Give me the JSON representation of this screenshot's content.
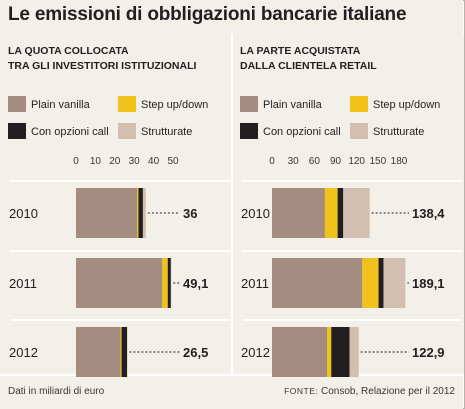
{
  "title": "Le emissioni di obbligazioni bancarie italiane",
  "colors": {
    "Plain vanilla": "#a48c80",
    "Step up/down": "#f0c21a",
    "Con opzioni call": "#231f20",
    "Strutturate": "#d3bfb0",
    "background": "#f3efe9"
  },
  "chart_data": [
    {
      "type": "bar",
      "orientation": "horizontal",
      "stacked": true,
      "title": "LA QUOTA COLLOCATA TRA GLI INVESTITORI ISTITUZIONALI",
      "title_lines": [
        "LA QUOTA COLLOCATA",
        "TRA GLI INVESTITORI ISTITUZIONALI"
      ],
      "categories": [
        "2010",
        "2011",
        "2012"
      ],
      "legend": [
        "Plain vanilla",
        "Step up/down",
        "Con opzioni call",
        "Strutturate"
      ],
      "series": [
        {
          "name": "Plain vanilla",
          "values": [
            31.5,
            44.5,
            23.0
          ]
        },
        {
          "name": "Step up/down",
          "values": [
            0.7,
            2.8,
            0.5
          ]
        },
        {
          "name": "Con opzioni call",
          "values": [
            2.3,
            1.6,
            2.8
          ]
        },
        {
          "name": "Strutturate",
          "values": [
            1.5,
            0.2,
            0.2
          ]
        }
      ],
      "totals": [
        "36",
        "49,1",
        "26,5"
      ],
      "xticks": [
        0,
        10,
        20,
        30,
        40,
        50
      ],
      "xlim": [
        0,
        50
      ]
    },
    {
      "type": "bar",
      "orientation": "horizontal",
      "stacked": true,
      "title": "LA PARTE ACQUISTATA DALLA CLIENTELA RETAIL",
      "title_lines": [
        "LA PARTE ACQUISTATA",
        "DALLA CLIENTELA RETAIL"
      ],
      "categories": [
        "2010",
        "2011",
        "2012"
      ],
      "legend": [
        "Plain vanilla",
        "Step up/down",
        "Con opzioni call",
        "Strutturate"
      ],
      "series": [
        {
          "name": "Plain vanilla",
          "values": [
            75,
            128,
            78
          ]
        },
        {
          "name": "Step up/down",
          "values": [
            18,
            23,
            6
          ]
        },
        {
          "name": "Con opzioni call",
          "values": [
            8,
            7,
            26
          ]
        },
        {
          "name": "Strutturate",
          "values": [
            37.4,
            31.1,
            12.9
          ]
        }
      ],
      "totals": [
        "138,4",
        "189,1",
        "122,9"
      ],
      "xticks": [
        0,
        30,
        60,
        90,
        120,
        150,
        180
      ],
      "xlim": [
        0,
        180
      ]
    }
  ],
  "footer": {
    "note": "Dati in miliardi di euro",
    "source_label": "FONTE:",
    "source_text": " Consob, Relazione per il 2012"
  }
}
